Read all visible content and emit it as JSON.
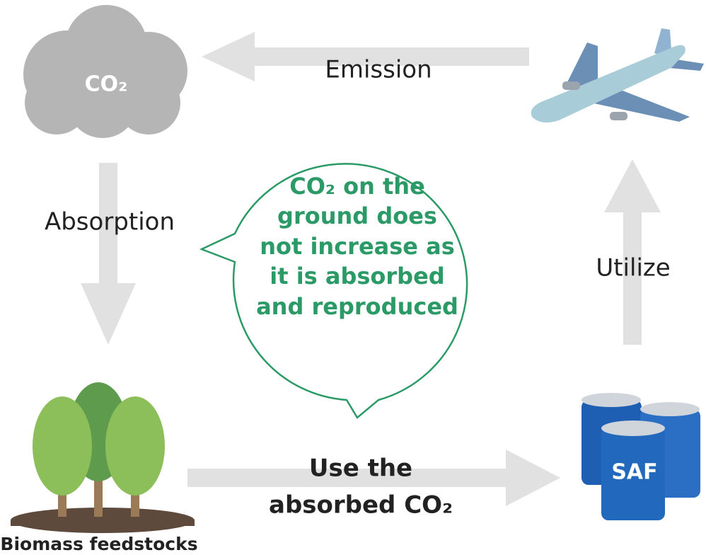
{
  "nodes": [
    {
      "label": "CO₂"
    },
    {
      "label": "SAF"
    },
    {
      "label": "Biomass feedstocks"
    }
  ],
  "edges": [
    {
      "label": [
        "Emission"
      ]
    },
    {
      "label": [
        "Absorption"
      ]
    },
    {
      "label": [
        "Utilize"
      ]
    },
    {
      "label": [
        "Use the",
        "absorbed CO₂"
      ]
    }
  ],
  "callout": {
    "lines": [
      "CO₂ on the",
      "ground does",
      "not increase as",
      "it is absorbed",
      "and reproduced"
    ]
  }
}
